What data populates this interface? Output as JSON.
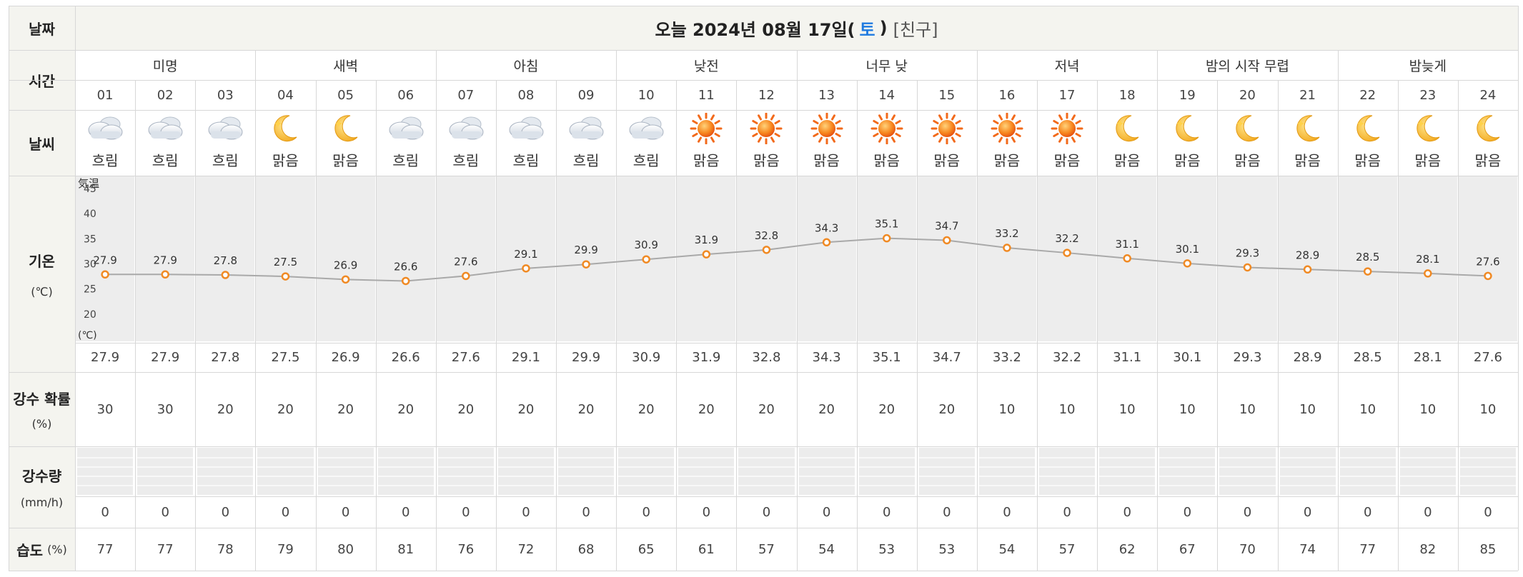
{
  "header": {
    "date_label": "날짜",
    "title_prefix": "오늘 2024년 08월 17일(",
    "title_day": "토",
    "title_suffix": ")",
    "title_link": "[친구]"
  },
  "rows": {
    "time_label": "시간",
    "weather_label": "날씨",
    "temp_label": "기온",
    "temp_unit": "(℃)",
    "precip_prob_label": "강수 확률",
    "precip_prob_unit": "(%)",
    "precip_amount_label": "강수량",
    "precip_amount_unit": "(mm/h)",
    "humidity_label": "습도",
    "humidity_unit": "(%)"
  },
  "periods": [
    {
      "label": "미명",
      "hours": 3
    },
    {
      "label": "새벽",
      "hours": 3
    },
    {
      "label": "아침",
      "hours": 3
    },
    {
      "label": "낮전",
      "hours": 3
    },
    {
      "label": "너무 낮",
      "hours": 3
    },
    {
      "label": "저녁",
      "hours": 3
    },
    {
      "label": "밤의 시작 무렵",
      "hours": 3
    },
    {
      "label": "밤늦게",
      "hours": 3
    }
  ],
  "hours": [
    "01",
    "02",
    "03",
    "04",
    "05",
    "06",
    "07",
    "08",
    "09",
    "10",
    "11",
    "12",
    "13",
    "14",
    "15",
    "16",
    "17",
    "18",
    "19",
    "20",
    "21",
    "22",
    "23",
    "24"
  ],
  "weather": [
    {
      "icon": "cloud-icon",
      "text": "흐림"
    },
    {
      "icon": "cloud-icon",
      "text": "흐림"
    },
    {
      "icon": "cloud-icon",
      "text": "흐림"
    },
    {
      "icon": "moon-icon",
      "text": "맑음"
    },
    {
      "icon": "moon-icon",
      "text": "맑음"
    },
    {
      "icon": "cloud-icon",
      "text": "흐림"
    },
    {
      "icon": "cloud-icon",
      "text": "흐림"
    },
    {
      "icon": "cloud-icon",
      "text": "흐림"
    },
    {
      "icon": "cloud-icon",
      "text": "흐림"
    },
    {
      "icon": "cloud-icon",
      "text": "흐림"
    },
    {
      "icon": "sun-icon",
      "text": "맑음"
    },
    {
      "icon": "sun-icon",
      "text": "맑음"
    },
    {
      "icon": "sun-icon",
      "text": "맑음"
    },
    {
      "icon": "sun-icon",
      "text": "맑음"
    },
    {
      "icon": "sun-icon",
      "text": "맑음"
    },
    {
      "icon": "sun-icon",
      "text": "맑음"
    },
    {
      "icon": "sun-icon",
      "text": "맑음"
    },
    {
      "icon": "moon-icon",
      "text": "맑음"
    },
    {
      "icon": "moon-icon",
      "text": "맑음"
    },
    {
      "icon": "moon-icon",
      "text": "맑음"
    },
    {
      "icon": "moon-icon",
      "text": "맑음"
    },
    {
      "icon": "moon-icon",
      "text": "맑음"
    },
    {
      "icon": "moon-icon",
      "text": "맑음"
    },
    {
      "icon": "moon-icon",
      "text": "맑음"
    }
  ],
  "temp_chart": {
    "axis_title": "気温",
    "axis_unit": "(℃)",
    "y_ticks": [
      "45",
      "40",
      "35",
      "30",
      "25",
      "20"
    ],
    "ylim": [
      15,
      47
    ],
    "line_color": "#a9a9a9",
    "marker_color": "#f08a24"
  },
  "temps": [
    "27.9",
    "27.9",
    "27.8",
    "27.5",
    "26.9",
    "26.6",
    "27.6",
    "29.1",
    "29.9",
    "30.9",
    "31.9",
    "32.8",
    "34.3",
    "35.1",
    "34.7",
    "33.2",
    "32.2",
    "31.1",
    "30.1",
    "29.3",
    "28.9",
    "28.5",
    "28.1",
    "27.6"
  ],
  "precip_prob": [
    "30",
    "30",
    "20",
    "20",
    "20",
    "20",
    "20",
    "20",
    "20",
    "20",
    "20",
    "20",
    "20",
    "20",
    "20",
    "10",
    "10",
    "10",
    "10",
    "10",
    "10",
    "10",
    "10",
    "10"
  ],
  "precip_amount": [
    "0",
    "0",
    "0",
    "0",
    "0",
    "0",
    "0",
    "0",
    "0",
    "0",
    "0",
    "0",
    "0",
    "0",
    "0",
    "0",
    "0",
    "0",
    "0",
    "0",
    "0",
    "0",
    "0",
    "0"
  ],
  "humidity": [
    "77",
    "77",
    "78",
    "79",
    "80",
    "81",
    "76",
    "72",
    "68",
    "65",
    "61",
    "57",
    "54",
    "53",
    "53",
    "54",
    "57",
    "62",
    "67",
    "70",
    "74",
    "77",
    "82",
    "85"
  ],
  "colors": {
    "header_bg": "#f4f4ef",
    "day_accent": "#1f7ae0",
    "grid_line": "#d7d7d7"
  }
}
